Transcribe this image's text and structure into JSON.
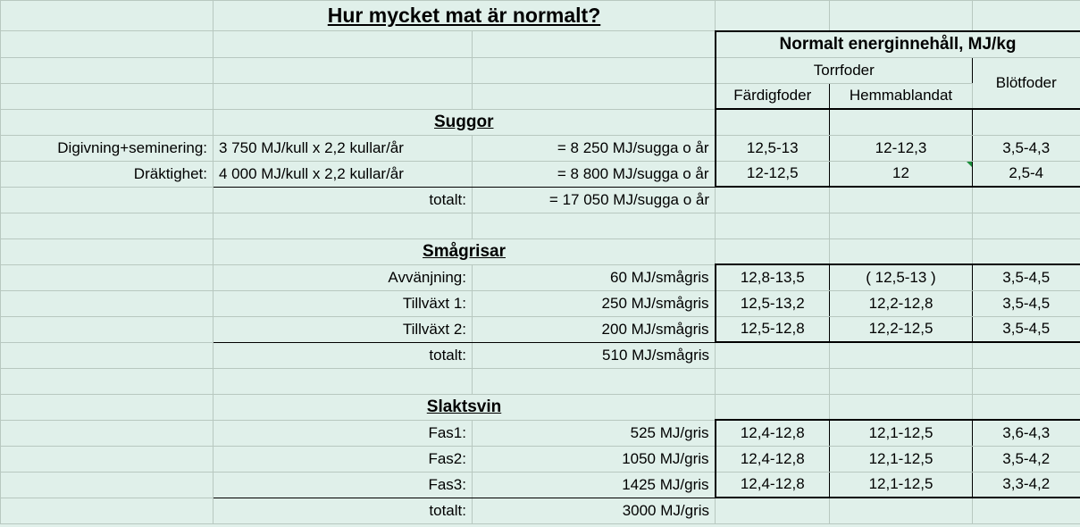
{
  "title": "Hur mycket mat är normalt?",
  "energyHeader": "Normalt energinnehåll, MJ/kg",
  "torrfoder": "Torrfoder",
  "blotfoder": "Blötfoder",
  "fardigfoder": "Färdigfoder",
  "hemmablandat": "Hemmablandat",
  "sections": {
    "suggor": {
      "heading": "Suggor",
      "rows": [
        {
          "label": "Digivning+seminering:",
          "calc": "3 750 MJ/kull x 2,2 kullar/år",
          "result": "= 8 250 MJ/sugga o år",
          "d": "12,5-13",
          "e": "12-12,3",
          "f": "3,5-4,3"
        },
        {
          "label": "Dräktighet:",
          "calc": "4 000 MJ/kull x 2,2 kullar/år",
          "result": "= 8 800 MJ/sugga o år",
          "d": "12-12,5",
          "e": "12",
          "f": "2,5-4"
        }
      ],
      "totalLabel": "totalt:",
      "totalVal": "= 17 050 MJ/sugga o år"
    },
    "smagrisar": {
      "heading": "Smågrisar",
      "rows": [
        {
          "label": "Avvänjning:",
          "result": "60 MJ/smågris",
          "d": "12,8-13,5",
          "e": "( 12,5-13 )",
          "f": "3,5-4,5"
        },
        {
          "label": "Tillväxt 1:",
          "result": "250 MJ/smågris",
          "d": "12,5-13,2",
          "e": "12,2-12,8",
          "f": "3,5-4,5"
        },
        {
          "label": "Tillväxt 2:",
          "result": "200 MJ/smågris",
          "d": "12,5-12,8",
          "e": "12,2-12,5",
          "f": "3,5-4,5"
        }
      ],
      "totalLabel": "totalt:",
      "totalVal": "510 MJ/smågris"
    },
    "slaktsvin": {
      "heading": "Slaktsvin",
      "rows": [
        {
          "label": "Fas1:",
          "result": "525 MJ/gris",
          "d": "12,4-12,8",
          "e": "12,1-12,5",
          "f": "3,6-4,3"
        },
        {
          "label": "Fas2:",
          "result": "1050 MJ/gris",
          "d": "12,4-12,8",
          "e": "12,1-12,5",
          "f": "3,5-4,2"
        },
        {
          "label": "Fas3:",
          "result": "1425 MJ/gris",
          "d": "12,4-12,8",
          "e": "12,1-12,5",
          "f": "3,3-4,2"
        }
      ],
      "totalLabel": "totalt:",
      "totalVal": "3000 MJ/gris"
    }
  }
}
